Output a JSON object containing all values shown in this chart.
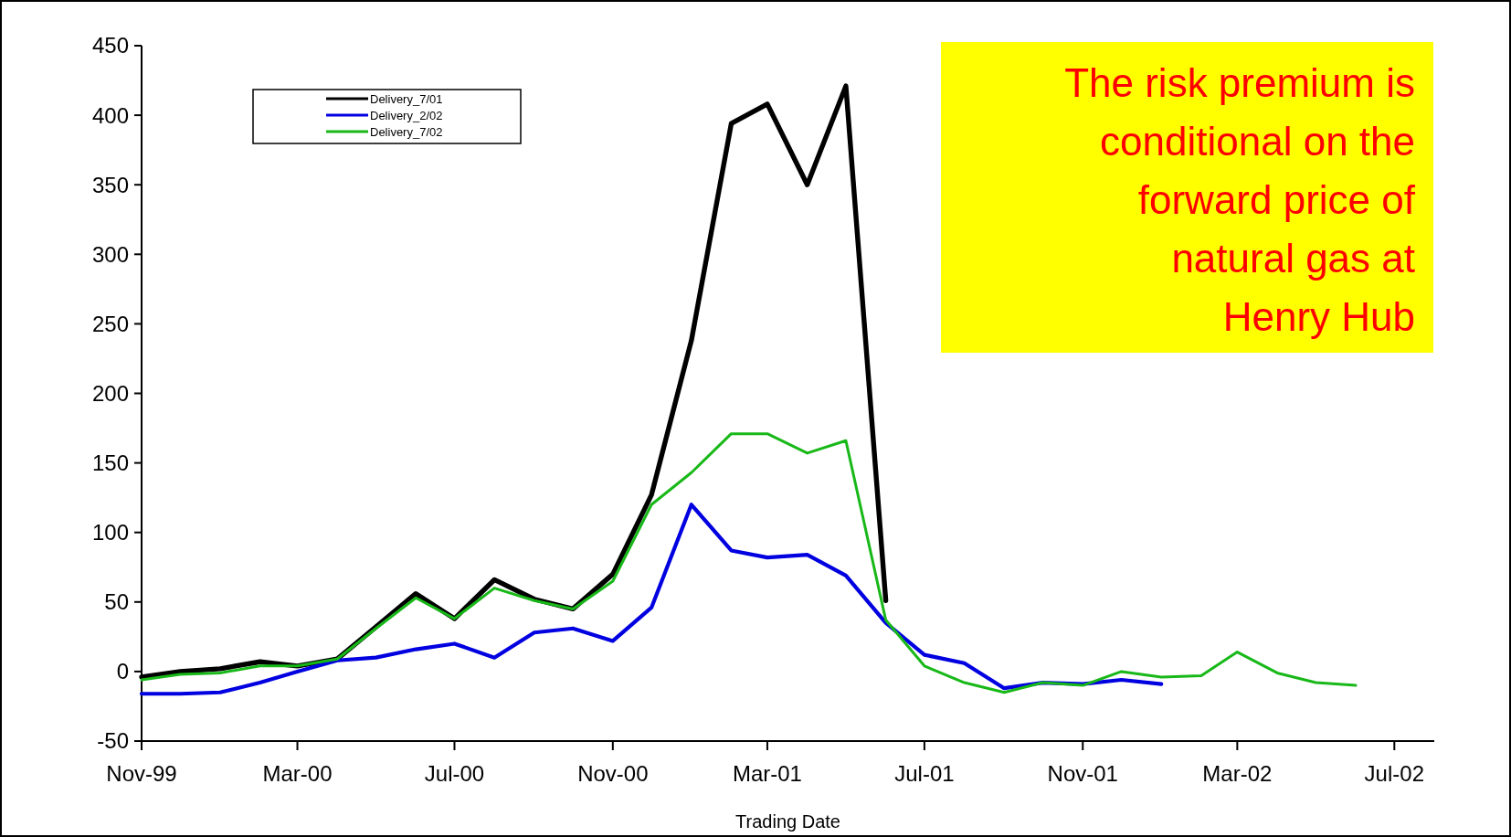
{
  "chart_data": {
    "type": "line",
    "xlabel": "Trading Date",
    "annotations": [
      "The risk premium is conditional on the forward price of natural gas at Henry Hub"
    ],
    "x": [
      "1999-11",
      "1999-12",
      "2000-01",
      "2000-02",
      "2000-03",
      "2000-04",
      "2000-05",
      "2000-06",
      "2000-07",
      "2000-08",
      "2000-09",
      "2000-10",
      "2000-11",
      "2000-12",
      "2001-01",
      "2001-02",
      "2001-03",
      "2001-04",
      "2001-05",
      "2001-06",
      "2001-07",
      "2001-08",
      "2001-09",
      "2001-10",
      "2001-11",
      "2001-12",
      "2002-01",
      "2002-02",
      "2002-03",
      "2002-04",
      "2002-05",
      "2002-06"
    ],
    "series": [
      {
        "name": "Delivery_7/01",
        "color": "#000000",
        "values": [
          -4,
          0,
          2,
          7,
          4,
          9,
          32,
          56,
          38,
          66,
          52,
          45,
          70,
          127,
          238,
          394,
          408,
          350,
          421,
          51,
          null,
          null,
          null,
          null,
          null,
          null,
          null,
          null,
          null,
          null,
          null,
          null
        ]
      },
      {
        "name": "Delivery_2/02",
        "color": "#0000e0",
        "values": [
          -16,
          -16,
          -15,
          -8,
          0,
          8,
          10,
          16,
          20,
          10,
          28,
          31,
          22,
          46,
          120,
          87,
          82,
          84,
          69,
          35,
          12,
          6,
          -12,
          -8,
          -9,
          -6,
          -9,
          null,
          null,
          null,
          null,
          null
        ]
      },
      {
        "name": "Delivery_7/02",
        "color": "#18b818",
        "values": [
          -6,
          -2,
          -1,
          4,
          4,
          9,
          31,
          53,
          38,
          60,
          51,
          45,
          65,
          120,
          143,
          171,
          171,
          157,
          166,
          37,
          4,
          -8,
          -15,
          -8,
          -10,
          0,
          -4,
          -3,
          14,
          -1,
          -8,
          -10
        ]
      }
    ],
    "xlim": [
      "1999-11",
      "2002-08"
    ],
    "xticks": [
      {
        "value": "1999-11",
        "label": "Nov-99"
      },
      {
        "value": "2000-03",
        "label": "Mar-00"
      },
      {
        "value": "2000-07",
        "label": "Jul-00"
      },
      {
        "value": "2000-11",
        "label": "Nov-00"
      },
      {
        "value": "2001-03",
        "label": "Mar-01"
      },
      {
        "value": "2001-07",
        "label": "Jul-01"
      },
      {
        "value": "2001-11",
        "label": "Nov-01"
      },
      {
        "value": "2002-03",
        "label": "Mar-02"
      },
      {
        "value": "2002-07",
        "label": "Jul-02"
      }
    ],
    "ylim": [
      -50,
      450
    ],
    "yticks": [
      -50,
      0,
      50,
      100,
      150,
      200,
      250,
      300,
      350,
      400,
      450
    ],
    "grid": false,
    "legend": "top left",
    "marker": "none",
    "line_style": "solid"
  }
}
